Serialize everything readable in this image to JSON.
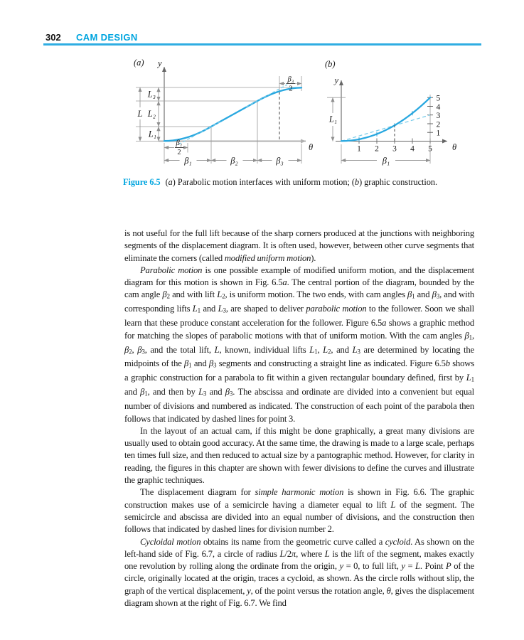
{
  "page": {
    "number": "302",
    "chapter": "CAM DESIGN"
  },
  "figure": {
    "caption_label": "Figure 6.5",
    "caption_text": "({i}a{/i}) Parabolic motion interfaces with uniform motion; ({i}b{/i}) graphic construction.",
    "colors": {
      "curve": "#29a8e0",
      "construction_dash": "#7bcce9",
      "accent_blue": "#00a5df",
      "dimension_gray": "#9a9a9a"
    },
    "a": {
      "tag": "(a)",
      "y_axis": "y",
      "x_axis": "θ",
      "lift_total": "L",
      "lift1": "L₁",
      "lift2": "L₂",
      "lift3": "L₃",
      "beta1": "β₁",
      "beta2": "β₂",
      "beta3": "β₃",
      "half_beta1_num": "β₁",
      "half_beta1_den": "2",
      "half_beta3_num": "β₃",
      "half_beta3_den": "2"
    },
    "b": {
      "tag": "(b)",
      "y_axis": "y",
      "x_axis": "θ",
      "lift1": "L₁",
      "beta1": "β₁",
      "xticks": [
        "1",
        "2",
        "3",
        "4",
        "5"
      ],
      "yticks_top_down": [
        "5",
        "4",
        "3",
        "2",
        "1"
      ]
    }
  },
  "body": {
    "paragraphs": [
      {
        "indent": false,
        "text": "is not useful for the full lift because of the sharp corners produced at the junctions with neighboring segments of the displacement diagram. It is often used, however, between other curve segments that eliminate the corners (called {i}modified uniform motion{/i})."
      },
      {
        "indent": true,
        "text": "{i}Parabolic motion{/i} is one possible example of modified uniform motion, and the displacement diagram for this motion is shown in Fig. 6.5{i}a{/i}. The central portion of the diagram, bounded by the cam angle {i}β{/i}{sub}2{/sub} and with lift {i}L{/i}{sub}2{/sub}, is uniform motion. The two ends, with cam angles {i}β{/i}{sub}1{/sub} and {i}β{/i}{sub}3{/sub}, and with corresponding lifts {i}L{/i}{sub}1{/sub} and {i}L{/i}{sub}3{/sub}, are shaped to deliver {i}parabolic motion{/i} to the follower. Soon we shall learn that these produce constant acceleration for the follower. Figure 6.5{i}a{/i} shows a graphic method for matching the slopes of parabolic motions with that of uniform motion. With the cam angles {i}β{/i}{sub}1{/sub}, {i}β{/i}{sub}2{/sub}, {i}β{/i}{sub}3{/sub}, and the total lift, {i}L{/i}, known, individual lifts {i}L{/i}{sub}1{/sub}, {i}L{/i}{sub}2{/sub}, and {i}L{/i}{sub}3{/sub} are determined by locating the midpoints of the {i}β{/i}{sub}1{/sub} and {i}β{/i}{sub}3{/sub} segments and constructing a straight line as indicated. Figure 6.5{i}b{/i} shows a graphic construction for a parabola to fit within a given rectangular boundary defined, first by {i}L{/i}{sub}1{/sub} and {i}β{/i}{sub}1{/sub}, and then by {i}L{/i}{sub}3{/sub} and {i}β{/i}{sub}3{/sub}. The abscissa and ordinate are divided into a convenient but equal number of divisions and numbered as indicated. The construction of each point of the parabola then follows that indicated by dashed lines for point 3."
      },
      {
        "indent": true,
        "text": "In the layout of an actual cam, if this might be done graphically, a great many divisions are usually used to obtain good accuracy. At the same time, the drawing is made to a large scale, perhaps ten times full size, and then reduced to actual size by a pantographic method. However, for clarity in reading, the figures in this chapter are shown with fewer divisions to define the curves and illustrate the graphic techniques."
      },
      {
        "indent": true,
        "text": "The displacement diagram for {i}simple harmonic motion{/i} is shown in Fig. 6.6. The graphic construction makes use of a semicircle having a diameter equal to lift {i}L{/i} of the segment. The semicircle and abscissa are divided into an equal number of divisions, and the construction then follows that indicated by dashed lines for division number 2."
      },
      {
        "indent": true,
        "text": "{i}Cycloidal motion{/i} obtains its name from the geometric curve called a {i}cycloid{/i}. As shown on the left-hand side of Fig. 6.7, a circle of radius {i}L{/i}/2{i}π{/i}, where {i}L{/i} is the lift of the segment, makes exactly one revolution by rolling along the ordinate from the origin, {i}y{/i} = 0, to full lift, {i}y{/i} = {i}L{/i}. Point {i}P{/i} of the circle, originally located at the origin, traces a cycloid, as shown. As the circle rolls without slip, the graph of the vertical displacement, {i}y{/i}, of the point versus the rotation angle, {i}θ{/i}, gives the displacement diagram shown at the right of Fig. 6.7. We find"
      }
    ]
  }
}
